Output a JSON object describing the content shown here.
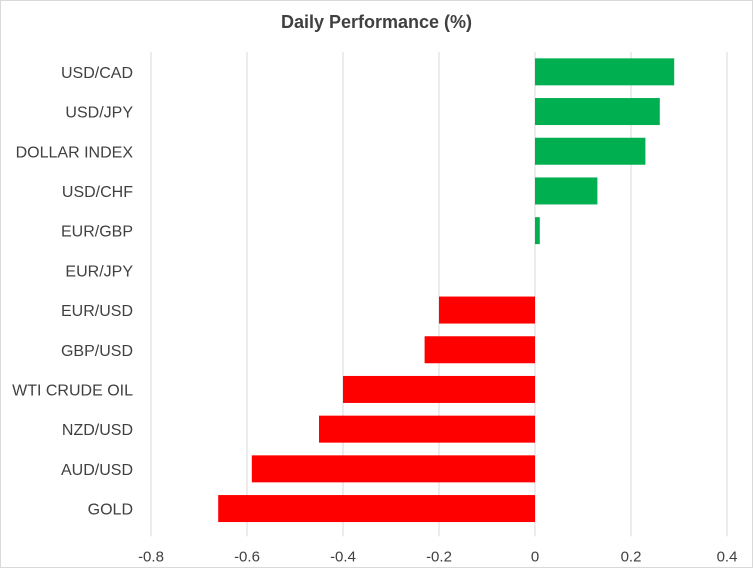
{
  "chart_data": {
    "type": "bar",
    "orientation": "horizontal",
    "title": "Daily Performance  (%)",
    "xlabel": "",
    "ylabel": "",
    "xlim": [
      -0.8,
      0.4
    ],
    "grid": true,
    "legend": "none",
    "x_ticks": [
      "-0.8",
      "-0.6",
      "-0.4",
      "-0.2",
      "0",
      "0.2",
      "0.4"
    ],
    "tick_values": [
      -0.8,
      -0.6,
      -0.4,
      -0.2,
      0,
      0.2,
      0.4
    ],
    "categories": [
      "USD/CAD",
      "USD/JPY",
      "DOLLAR INDEX",
      "USD/CHF",
      "EUR/GBP",
      "EUR/JPY",
      "EUR/USD",
      "GBP/USD",
      "WTI CRUDE OIL",
      "NZD/USD",
      "AUD/USD",
      "GOLD"
    ],
    "values": [
      0.29,
      0.26,
      0.23,
      0.13,
      0.01,
      0.0,
      -0.2,
      -0.23,
      -0.4,
      -0.45,
      -0.59,
      -0.66
    ],
    "colors": {
      "positive": "#00b050",
      "negative": "#ff0000",
      "grid": "#d9d9d9",
      "text": "#404040"
    }
  }
}
